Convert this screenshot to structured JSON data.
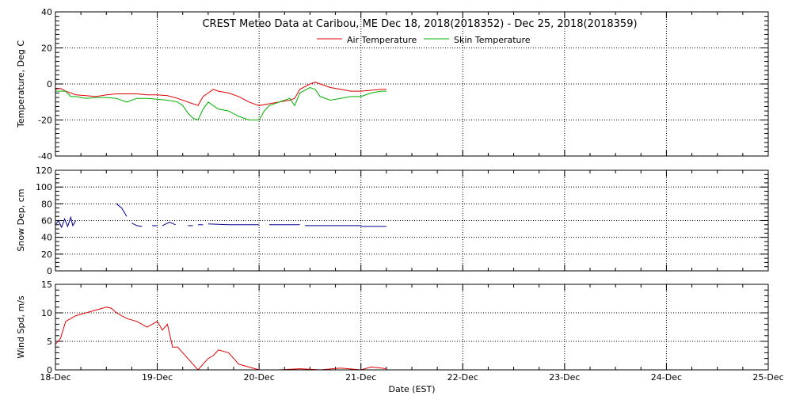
{
  "chart_data": [
    {
      "type": "line",
      "title": "CREST Meteo Data at Caribou, ME   Dec 18, 2018(2018352) - Dec 25, 2018(2018359)",
      "ylabel": "Temperature, Deg C",
      "ylim": [
        -40,
        40
      ],
      "yticks": [
        "-40",
        "-20",
        "0",
        "20",
        "40"
      ],
      "xlim": [
        0,
        7
      ],
      "grid": true,
      "legend": "top-center",
      "series": [
        {
          "name": "Air Temperature",
          "color": "#e00000",
          "x": [
            0,
            0.05,
            0.1,
            0.15,
            0.2,
            0.3,
            0.4,
            0.5,
            0.6,
            0.7,
            0.8,
            0.9,
            1.0,
            1.1,
            1.2,
            1.3,
            1.35,
            1.4,
            1.45,
            1.5,
            1.55,
            1.6,
            1.7,
            1.8,
            1.9,
            2.0,
            2.1,
            2.2,
            2.3,
            2.35,
            2.4,
            2.5,
            2.55,
            2.6,
            2.7,
            2.8,
            2.9,
            3.0,
            3.1,
            3.2,
            3.25
          ],
          "y": [
            -3,
            -2.5,
            -4,
            -5,
            -6,
            -6.5,
            -7,
            -6,
            -5.5,
            -5.5,
            -5.5,
            -6,
            -6,
            -6.5,
            -8,
            -10,
            -11,
            -12,
            -7,
            -5,
            -3,
            -4,
            -5,
            -7,
            -10,
            -12,
            -11,
            -10,
            -9,
            -8,
            -3,
            0,
            1,
            0,
            -2,
            -3,
            -4,
            -4,
            -3.5,
            -3,
            -3
          ]
        },
        {
          "name": "Skin Temperature",
          "color": "#00b000",
          "x": [
            0,
            0.1,
            0.15,
            0.2,
            0.3,
            0.4,
            0.5,
            0.6,
            0.7,
            0.8,
            0.9,
            1.0,
            1.1,
            1.2,
            1.25,
            1.3,
            1.35,
            1.4,
            1.45,
            1.5,
            1.55,
            1.6,
            1.7,
            1.8,
            1.9,
            1.95,
            2.0,
            2.05,
            2.1,
            2.2,
            2.3,
            2.35,
            2.4,
            2.5,
            2.55,
            2.6,
            2.7,
            2.8,
            2.9,
            3.0,
            3.1,
            3.2,
            3.25
          ],
          "y": [
            -4,
            -4,
            -7,
            -7,
            -8,
            -7.5,
            -7.5,
            -8,
            -10,
            -8,
            -8,
            -8.5,
            -9,
            -10,
            -12,
            -16,
            -19,
            -20,
            -14,
            -10,
            -12,
            -14,
            -15,
            -18,
            -20,
            -20,
            -20,
            -15,
            -12,
            -10,
            -8,
            -12,
            -5,
            -2,
            -3,
            -7,
            -9,
            -8,
            -7,
            -7,
            -5,
            -4,
            -4
          ]
        }
      ]
    },
    {
      "type": "line",
      "ylabel": "Snow Dep, cm",
      "ylim": [
        0,
        120
      ],
      "yticks": [
        "0",
        "20",
        "40",
        "60",
        "80",
        "100",
        "120"
      ],
      "xlim": [
        0,
        7
      ],
      "grid": true,
      "series": [
        {
          "color": "#00008b",
          "segments": [
            {
              "x": [
                0,
                0.03,
                0.06,
                0.09,
                0.12,
                0.15,
                0.17,
                0.2
              ],
              "y": [
                55,
                60,
                52,
                62,
                53,
                64,
                54,
                60
              ]
            },
            {
              "x": [
                0.6,
                0.65,
                0.7
              ],
              "y": [
                80,
                75,
                65
              ]
            },
            {
              "x": [
                0.75,
                0.8,
                0.85
              ],
              "y": [
                57,
                54,
                53
              ]
            },
            {
              "x": [
                0.95,
                1.0
              ],
              "y": [
                54,
                54
              ]
            },
            {
              "x": [
                1.05,
                1.12,
                1.18
              ],
              "y": [
                54,
                58,
                55
              ]
            },
            {
              "x": [
                1.3,
                1.35
              ],
              "y": [
                54,
                54
              ]
            },
            {
              "x": [
                1.4,
                1.45
              ],
              "y": [
                55,
                55
              ]
            },
            {
              "x": [
                1.5,
                1.7,
                1.9,
                2.0
              ],
              "y": [
                56,
                55,
                55,
                55
              ]
            },
            {
              "x": [
                2.1,
                2.4
              ],
              "y": [
                55,
                55
              ]
            },
            {
              "x": [
                2.45,
                2.7,
                3.0
              ],
              "y": [
                54,
                54,
                54
              ]
            },
            {
              "x": [
                3.0,
                3.25
              ],
              "y": [
                53,
                53
              ]
            }
          ]
        }
      ]
    },
    {
      "type": "line",
      "ylabel": "Wind Spd, m/s",
      "ylim": [
        0,
        15
      ],
      "yticks": [
        "0",
        "5",
        "10",
        "15"
      ],
      "xlim": [
        0,
        7
      ],
      "xlabel": "Date (EST)",
      "xticks": [
        "18-Dec",
        "19-Dec",
        "20-Dec",
        "21-Dec",
        "22-Dec",
        "23-Dec",
        "24-Dec",
        "25-Dec"
      ],
      "grid": true,
      "series": [
        {
          "color": "#e00000",
          "x": [
            0,
            0.05,
            0.1,
            0.15,
            0.2,
            0.3,
            0.4,
            0.5,
            0.55,
            0.6,
            0.7,
            0.8,
            0.9,
            1.0,
            1.05,
            1.1,
            1.15,
            1.2,
            1.25,
            1.3,
            1.35,
            1.4,
            1.45,
            1.5,
            1.55,
            1.6,
            1.7,
            1.75,
            1.8,
            1.9,
            2.0,
            2.2,
            2.4,
            2.6,
            2.8,
            3.0,
            3.1,
            3.2,
            3.25
          ],
          "y": [
            4.5,
            5.5,
            8.5,
            9,
            9.5,
            10,
            10.5,
            11,
            10.8,
            10,
            9,
            8.5,
            7.5,
            8.5,
            7,
            8,
            4,
            4,
            3,
            2,
            1,
            0,
            1,
            2,
            2.5,
            3.5,
            3,
            2,
            1,
            0.5,
            0,
            0,
            0.2,
            0,
            0.3,
            0,
            0.5,
            0.3,
            0.2
          ]
        }
      ]
    }
  ]
}
